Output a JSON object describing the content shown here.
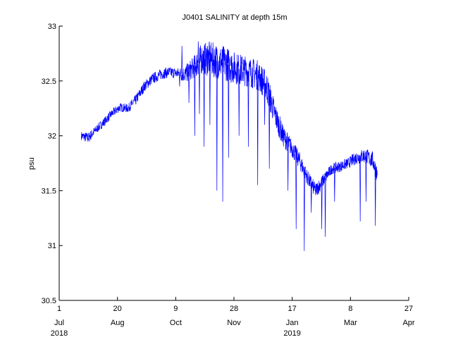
{
  "chart_data": {
    "type": "line",
    "title": "J0401 SALINITY at depth 15m",
    "ylabel": "psu",
    "xlabel": "",
    "ylim": [
      30.5,
      33
    ],
    "yticks": [
      "30.5",
      "31",
      "31.5",
      "32",
      "32.5",
      "33"
    ],
    "xlim": [
      "2018-07-01",
      "2019-04-27"
    ],
    "xticks": [
      {
        "date": "2018-07-01",
        "day": "1",
        "month": "Jul",
        "year": "2018"
      },
      {
        "date": "2018-08-20",
        "day": "20",
        "month": "Aug",
        "year": ""
      },
      {
        "date": "2018-10-09",
        "day": "9",
        "month": "Oct",
        "year": ""
      },
      {
        "date": "2018-11-28",
        "day": "28",
        "month": "Nov",
        "year": ""
      },
      {
        "date": "2019-01-17",
        "day": "17",
        "month": "Jan",
        "year": "2019"
      },
      {
        "date": "2019-03-08",
        "day": "8",
        "month": "Mar",
        "year": ""
      },
      {
        "date": "2019-04-27",
        "day": "27",
        "month": "Apr",
        "year": ""
      }
    ],
    "grid": false,
    "series_color": "#0000ff",
    "series": [
      {
        "x": [
          "2018-07-20",
          "2018-07-26",
          "2018-08-01",
          "2018-08-08",
          "2018-08-15",
          "2018-08-22",
          "2018-08-29",
          "2018-09-05",
          "2018-09-12",
          "2018-09-19",
          "2018-09-26",
          "2018-10-03",
          "2018-10-10",
          "2018-10-17",
          "2018-10-24",
          "2018-10-31",
          "2018-11-07",
          "2018-11-14",
          "2018-11-21",
          "2018-11-28",
          "2018-12-05",
          "2018-12-12",
          "2018-12-19",
          "2018-12-26",
          "2019-01-02",
          "2019-01-09",
          "2019-01-16",
          "2019-01-23",
          "2019-01-30",
          "2019-02-06",
          "2019-02-13",
          "2019-02-20",
          "2019-02-27",
          "2019-03-06",
          "2019-03-13",
          "2019-03-20",
          "2019-03-27",
          "2019-03-31"
        ],
        "y": [
          32.0,
          31.98,
          32.05,
          32.12,
          32.2,
          32.26,
          32.25,
          32.33,
          32.45,
          32.52,
          32.56,
          32.58,
          32.57,
          32.56,
          32.62,
          32.7,
          32.7,
          32.68,
          32.66,
          32.62,
          32.6,
          32.58,
          32.55,
          32.45,
          32.2,
          32.0,
          31.9,
          31.78,
          31.62,
          31.5,
          31.6,
          31.7,
          31.72,
          31.75,
          31.8,
          31.82,
          31.78,
          31.65
        ],
        "spread": [
          0.04,
          0.05,
          0.04,
          0.04,
          0.04,
          0.04,
          0.04,
          0.05,
          0.05,
          0.05,
          0.05,
          0.05,
          0.05,
          0.08,
          0.1,
          0.14,
          0.16,
          0.16,
          0.16,
          0.15,
          0.14,
          0.14,
          0.14,
          0.14,
          0.12,
          0.1,
          0.08,
          0.08,
          0.07,
          0.07,
          0.06,
          0.05,
          0.05,
          0.05,
          0.06,
          0.07,
          0.08,
          0.08
        ],
        "spikes": [
          {
            "x": "2018-10-12",
            "min": 32.45
          },
          {
            "x": "2018-10-20",
            "min": 32.3
          },
          {
            "x": "2018-10-25",
            "min": 32.0
          },
          {
            "x": "2018-10-29",
            "min": 32.2
          },
          {
            "x": "2018-11-02",
            "min": 31.9
          },
          {
            "x": "2018-11-07",
            "min": 32.1
          },
          {
            "x": "2018-11-13",
            "min": 31.5
          },
          {
            "x": "2018-11-18",
            "min": 31.4
          },
          {
            "x": "2018-11-23",
            "min": 31.8
          },
          {
            "x": "2018-12-02",
            "min": 32.0
          },
          {
            "x": "2018-12-10",
            "min": 31.9
          },
          {
            "x": "2018-12-18",
            "min": 31.55
          },
          {
            "x": "2018-12-24",
            "min": 32.1
          },
          {
            "x": "2018-12-28",
            "min": 31.7
          },
          {
            "x": "2019-01-13",
            "min": 31.5
          },
          {
            "x": "2019-01-20",
            "min": 31.15
          },
          {
            "x": "2019-01-27",
            "min": 30.95
          },
          {
            "x": "2019-02-02",
            "min": 31.3
          },
          {
            "x": "2019-02-11",
            "min": 31.15
          },
          {
            "x": "2019-02-14",
            "min": 31.08
          },
          {
            "x": "2019-02-22",
            "min": 31.4
          },
          {
            "x": "2019-03-16",
            "min": 31.22
          },
          {
            "x": "2019-03-21",
            "min": 31.4
          },
          {
            "x": "2019-03-29",
            "min": 31.18
          }
        ],
        "peaks": [
          {
            "x": "2018-10-14",
            "max": 32.82
          },
          {
            "x": "2018-10-28",
            "max": 32.86
          },
          {
            "x": "2018-11-05",
            "max": 32.82
          },
          {
            "x": "2018-11-12",
            "max": 32.8
          },
          {
            "x": "2018-11-25",
            "max": 32.72
          },
          {
            "x": "2018-12-06",
            "max": 32.7
          }
        ]
      }
    ]
  }
}
